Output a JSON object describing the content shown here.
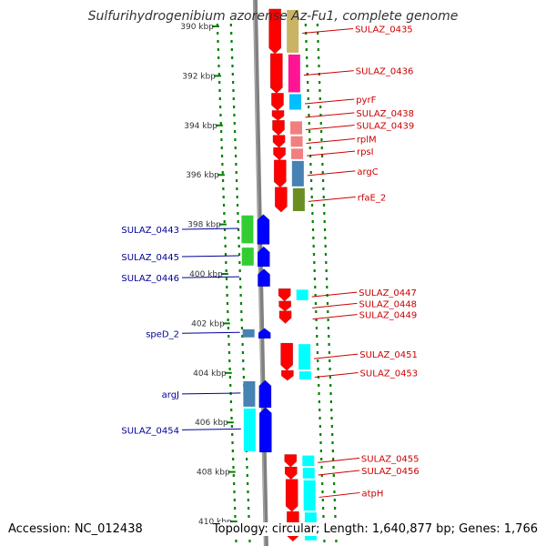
{
  "title": "Sulfurihydrogenibium azorense Az-Fu1, complete genome",
  "footer": {
    "accession": "Accession: NC_012438",
    "summary": "Topology: circular; Length: 1,640,877 bp; Genes: 1,766"
  },
  "colors": {
    "forward_gene": "#ff0000",
    "reverse_gene": "#0000ff",
    "forward_label": "#cc0000",
    "reverse_label": "#000099",
    "tick": "#008000",
    "backbone": "#808080"
  },
  "ruler": {
    "unit": "kbp",
    "ticks": [
      {
        "kbp": 390,
        "label": "390 kbp"
      },
      {
        "kbp": 392,
        "label": "392 kbp"
      },
      {
        "kbp": 394,
        "label": "394 kbp"
      },
      {
        "kbp": 396,
        "label": "396 kbp"
      },
      {
        "kbp": 398,
        "label": "398 kbp"
      },
      {
        "kbp": 400,
        "label": "400 kbp"
      },
      {
        "kbp": 402,
        "label": "402 kbp"
      },
      {
        "kbp": 404,
        "label": "404 kbp"
      },
      {
        "kbp": 406,
        "label": "406 kbp"
      },
      {
        "kbp": 408,
        "label": "408 kbp"
      },
      {
        "kbp": 410,
        "label": "410 kbp"
      }
    ]
  },
  "forward_genes": [
    {
      "label": "SULAZ_0435",
      "start": 389.3,
      "end": 391.1,
      "cog": "#c8b464"
    },
    {
      "label": "SULAZ_0436",
      "start": 391.1,
      "end": 392.7,
      "cog": "#ff1493"
    },
    {
      "label": "pyrF",
      "start": 392.7,
      "end": 393.4,
      "cog": "#00bfff"
    },
    {
      "label": "SULAZ_0438",
      "start": 393.4,
      "end": 393.8,
      "cog": ""
    },
    {
      "label": "SULAZ_0439",
      "start": 393.8,
      "end": 394.4,
      "cog": "#f08080"
    },
    {
      "label": "rplM",
      "start": 394.4,
      "end": 394.9,
      "cog": "#f08080"
    },
    {
      "label": "rpsI",
      "start": 394.9,
      "end": 395.4,
      "cog": "#f08080"
    },
    {
      "label": "argC",
      "start": 395.4,
      "end": 396.5,
      "cog": "#4682b4"
    },
    {
      "label": "rfaE_2",
      "start": 396.5,
      "end": 397.5,
      "cog": "#6b8e23"
    },
    {
      "label": "SULAZ_0447",
      "start": 400.6,
      "end": 401.1,
      "cog": "#00ffff"
    },
    {
      "label": "SULAZ_0448",
      "start": 401.1,
      "end": 401.5,
      "cog": ""
    },
    {
      "label": "SULAZ_0449",
      "start": 401.5,
      "end": 402.0,
      "cog": ""
    },
    {
      "label": "SULAZ_0451",
      "start": 402.8,
      "end": 403.9,
      "cog": "#00ffff"
    },
    {
      "label": "SULAZ_0453",
      "start": 403.9,
      "end": 404.3,
      "cog": "#00ffff"
    },
    {
      "label": "SULAZ_0455",
      "start": 407.3,
      "end": 407.8,
      "cog": "#00ffff"
    },
    {
      "label": "SULAZ_0456",
      "start": 407.8,
      "end": 408.3,
      "cog": "#00ffff"
    },
    {
      "label": "atpH",
      "start": 408.3,
      "end": 409.6,
      "cog": "#00ffff"
    },
    {
      "label": "",
      "start": 409.6,
      "end": 410.8,
      "cog": "#00ffff"
    }
  ],
  "reverse_genes": [
    {
      "label": "SULAZ_0443",
      "start": 397.6,
      "end": 398.8,
      "cog": "#32cd32"
    },
    {
      "label": "SULAZ_0445",
      "start": 398.9,
      "end": 399.7,
      "cog": "#32cd32"
    },
    {
      "label": "SULAZ_0446",
      "start": 399.8,
      "end": 400.5,
      "cog": ""
    },
    {
      "label": "speD_2",
      "start": 402.2,
      "end": 402.6,
      "cog": "#4682b4"
    },
    {
      "label": "argJ",
      "start": 404.3,
      "end": 405.4,
      "cog": "#4682b4"
    },
    {
      "label": "SULAZ_0454",
      "start": 405.4,
      "end": 407.2,
      "cog": "#00ffff"
    }
  ]
}
